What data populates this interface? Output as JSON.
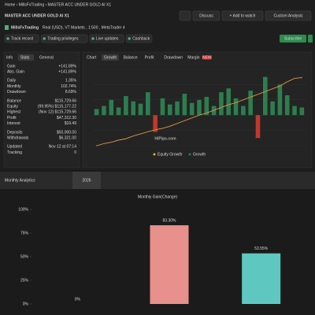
{
  "header": {
    "breadcrumb": "Home › MillsFxTrading › MASTER ACC UNDER GOLD AI X1",
    "title": "MASTER ACC UNDER GOLD AI X1",
    "buttons": [
      "Discuss",
      "+ Add to watch",
      "Custom Analysis"
    ],
    "owner": "MillsFxTrading",
    "account": "Real (USD), VT Markets , 1:500 , MetaTrader 4",
    "badges": [
      "Track record",
      "Trading privileges",
      "Live updates",
      "Cashback"
    ],
    "subscribe": "Subscribe"
  },
  "stats": {
    "tabs": [
      "Info",
      "Stats",
      "General"
    ],
    "rows": [
      {
        "label": "Gain",
        "value": "+141.89%"
      },
      {
        "label": "Abs. Gain",
        "value": "+141.89%"
      },
      {
        "label": "Daily",
        "value": "1.35%"
      },
      {
        "label": "Monthly",
        "value": "102.74%"
      },
      {
        "label": "Drawdown",
        "value": "8.69%"
      },
      {
        "label": "Balance",
        "value": "$115,729.66"
      },
      {
        "label": "Equity",
        "value": "(99.95%) $115,177.22"
      },
      {
        "label": "Highest",
        "value": "(Nov 12) $115,729.66"
      },
      {
        "label": "Profit",
        "value": "$47,312.30"
      },
      {
        "label": "Interest",
        "value": "$19.49"
      },
      {
        "label": "Deposits",
        "value": "$50,000.00"
      },
      {
        "label": "Withdrawals",
        "value": "$6,321.00"
      },
      {
        "label": "Updated",
        "value": "Nov 12 at 07:14"
      },
      {
        "label": "Tracking",
        "value": "0"
      }
    ]
  },
  "growth_chart": {
    "tabs": [
      "Chart",
      "Growth",
      "Balance",
      "Profit",
      "Drawdown",
      "Margin"
    ],
    "new_badge": "NEW",
    "series": [
      {
        "name": "Equity Growth",
        "color": "#e0b040",
        "values": [
          0,
          3,
          5,
          8,
          10,
          14,
          17,
          20,
          23,
          25,
          28,
          32,
          36,
          40,
          44,
          47,
          51,
          55,
          59,
          62,
          66,
          70,
          74,
          78,
          82,
          86,
          92,
          97,
          98
        ]
      },
      {
        "name": "Growth",
        "color": "#2e7d4f",
        "values": [
          8,
          12,
          20,
          10,
          25,
          18,
          15,
          30,
          -22,
          22,
          14,
          18,
          28,
          16,
          20,
          24,
          12,
          30,
          35,
          22,
          12,
          32,
          -30,
          50,
          18,
          40,
          26,
          12,
          10
        ]
      }
    ],
    "ylim": [
      0,
      110
    ],
    "y2lim": [
      -40,
      60
    ]
  },
  "watermark": "HiPips.com",
  "monthly": {
    "tabs": [
      "Monthly Analytics",
      "2026"
    ],
    "chart_data": {
      "type": "bar",
      "title": "Monthly Gain(Change)",
      "categories": [
        null,
        null,
        null
      ],
      "values": [
        0,
        83.3,
        53.55
      ],
      "value_labels": [
        "0%",
        "83.30%",
        "53.55%"
      ],
      "colors": [
        "#e8908c",
        "#e8908c",
        "#5ec8c0"
      ],
      "ylim": [
        0,
        100
      ],
      "yticks": [
        {
          "value": 0,
          "label": "0%"
        },
        {
          "value": 25,
          "label": "25%"
        },
        {
          "value": 50,
          "label": "50%"
        },
        {
          "value": 75,
          "label": "75%"
        },
        {
          "value": 100,
          "label": "100%"
        }
      ]
    }
  }
}
